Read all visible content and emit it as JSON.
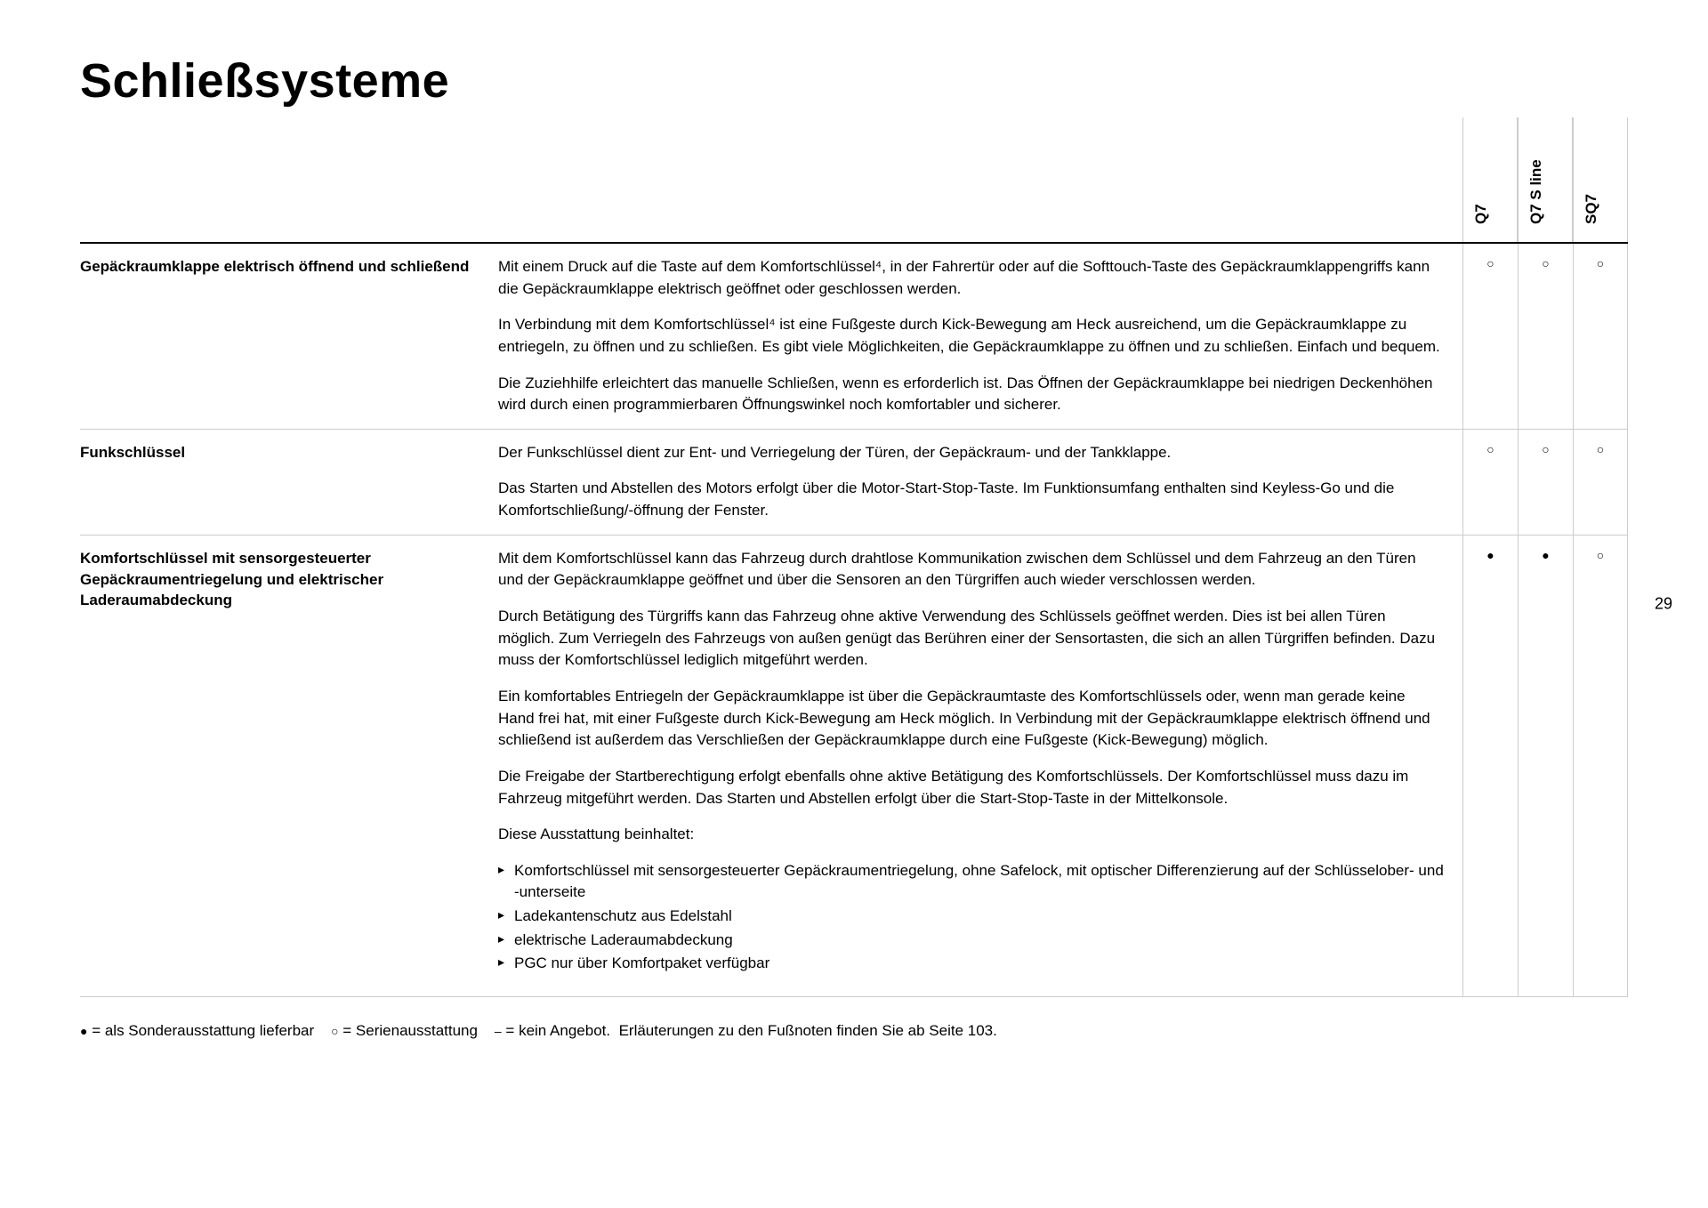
{
  "pageNumber": "29",
  "title": "Schließsysteme",
  "columns": [
    "Q7",
    "Q7 S line",
    "SQ7"
  ],
  "symbols": {
    "optional": "●",
    "standard": "○",
    "none": "–"
  },
  "legend": {
    "optional": "= als Sonderausstattung lieferbar",
    "standard": "= Serienausstattung",
    "none": "= kein Angebot.",
    "footnote_ref": "Erläuterungen zu den Fußnoten finden Sie ab Seite 103."
  },
  "rows": [
    {
      "name": "Gepäckraumklappe elektrisch öffnend und schließend",
      "paragraphs": [
        "Mit einem Druck auf die Taste auf dem Komfortschlüssel⁴, in der Fahrertür oder auf die Softtouch-Taste des Gepäckraumklappengriffs kann die Gepäckraumklappe elektrisch geöffnet oder geschlossen werden.",
        "In Verbindung mit dem Komfortschlüssel⁴ ist eine Fußgeste durch Kick-Bewegung am Heck ausreichend, um die Gepäckraumklappe zu entriegeln, zu öffnen und zu schließen. Es gibt viele Möglichkeiten, die Gepäckraumklappe zu öffnen und zu schließen. Einfach und bequem.",
        "Die Zuziehhilfe erleichtert das manuelle Schließen, wenn es erforderlich ist. Das Öffnen der Gepäckraumklappe bei niedrigen Deckenhöhen wird durch einen programmierbaren Öffnungswinkel noch komfortabler und sicherer."
      ],
      "bullets": [],
      "avail": [
        "standard",
        "standard",
        "standard"
      ]
    },
    {
      "name": "Funkschlüssel",
      "paragraphs": [
        "Der Funkschlüssel dient zur Ent- und Verriegelung der Türen, der Gepäckraum- und der Tankklappe.",
        "Das Starten und Abstellen des Motors erfolgt über die Motor-Start-Stop-Taste. Im Funktionsumfang enthalten sind Keyless-Go und die Komfortschließung/-öffnung der Fenster."
      ],
      "bullets": [],
      "avail": [
        "standard",
        "standard",
        "standard"
      ]
    },
    {
      "name": "Komfortschlüssel mit sensorgesteuerter Gepäckraumentriegelung und elektrischer Laderaumabdeckung",
      "paragraphs": [
        "Mit dem Komfortschlüssel kann das Fahrzeug durch drahtlose Kommunikation zwischen dem Schlüssel und dem Fahrzeug an den Türen und der Gepäckraumklappe geöffnet und über die Sensoren an den Türgriffen auch wieder verschlossen werden.",
        "Durch Betätigung des Türgriffs kann das Fahrzeug ohne aktive Verwendung des Schlüssels geöffnet werden. Dies ist bei allen Türen möglich. Zum Verriegeln des Fahrzeugs von außen genügt das Berühren einer der Sensortasten, die sich an allen Türgriffen befinden. Dazu muss der Komfortschlüssel lediglich mitgeführt werden.",
        "Ein komfortables Entriegeln der Gepäckraumklappe ist über die Gepäckraumtaste des Komfortschlüssels oder, wenn man gerade keine Hand frei hat, mit einer Fußgeste durch Kick-Bewegung am Heck möglich. In Verbindung mit der Gepäckraumklappe elektrisch öffnend und schließend ist außerdem das Verschließen der Gepäckraumklappe durch eine Fußgeste (Kick-Bewegung) möglich.",
        "Die Freigabe der Startberechtigung erfolgt ebenfalls ohne aktive Betätigung des Komfortschlüssels. Der Komfortschlüssel muss dazu im Fahrzeug mitgeführt werden. Das Starten und Abstellen erfolgt über die Start-Stop-Taste in der Mittelkonsole.",
        "Diese Ausstattung beinhaltet:"
      ],
      "bullets": [
        "Komfortschlüssel mit sensorgesteuerter Gepäckraumentriegelung, ohne Safelock, mit optischer Differenzierung auf der Schlüsselober- und -unterseite",
        "Ladekantenschutz aus Edelstahl",
        "elektrische Laderaumabdeckung",
        "PGC nur über Komfortpaket verfügbar"
      ],
      "avail": [
        "optional",
        "optional",
        "standard"
      ]
    }
  ]
}
